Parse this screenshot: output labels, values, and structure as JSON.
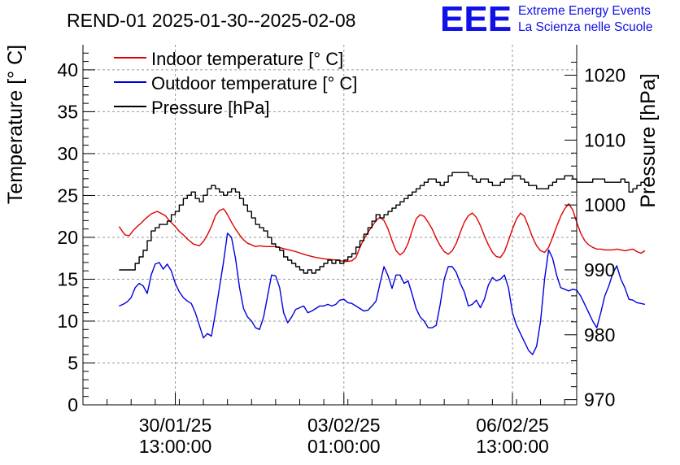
{
  "chart_data": {
    "type": "line",
    "title": "REND-01 2025-01-30--2025-02-08",
    "logo": {
      "text": "EEE",
      "line1": "Extreme Energy Events",
      "line2": "La Scienza nelle Scuole",
      "color": "#1010e8"
    },
    "ylabel": "Temperature [° C]",
    "y2label": "Pressure [hPa]",
    "ylim": [
      0,
      43
    ],
    "y2lim": [
      969.2,
      1024.7
    ],
    "yticks": [
      0,
      5,
      10,
      15,
      20,
      25,
      30,
      35,
      40
    ],
    "y2ticks": [
      970,
      980,
      990,
      1000,
      1010,
      1020
    ],
    "xlim_hours": [
      -46,
      200
    ],
    "xticks": [
      {
        "hour": 0,
        "line1": "30/01/25",
        "line2": "13:00:00"
      },
      {
        "hour": 84,
        "line1": "03/02/25",
        "line2": "01:00:00"
      },
      {
        "hour": 168,
        "line1": "06/02/25",
        "line2": "13:00:00"
      }
    ],
    "x_unit": "hours since 30/01/25 13:00:00",
    "grid": true,
    "legend_position": "top-left",
    "series": [
      {
        "name": "Indoor temperature [° C]",
        "axis": "left",
        "color": "#e00000",
        "x": [
          -28,
          -26,
          -25,
          -23,
          -21,
          -19,
          -17,
          -15,
          -12,
          -9,
          -5,
          -3,
          0,
          2,
          4,
          6,
          9,
          12,
          14,
          16,
          18,
          20,
          22,
          24,
          25,
          26,
          28,
          30,
          32,
          34,
          36,
          38,
          40,
          42,
          45,
          50,
          55,
          60,
          65,
          70,
          75,
          80,
          85,
          88,
          90,
          92,
          94,
          96,
          98,
          100,
          102,
          104,
          106,
          108,
          110,
          112,
          114,
          116,
          118,
          120,
          122,
          124,
          126,
          128,
          130,
          132,
          134,
          136,
          138,
          140,
          142,
          144,
          146,
          148,
          150,
          152,
          154,
          156,
          158,
          160,
          162,
          164,
          166,
          168,
          170,
          172,
          174,
          176,
          178,
          180,
          182,
          184,
          186,
          188,
          190,
          192,
          194,
          196,
          198,
          200,
          202,
          204,
          206,
          208,
          210,
          212,
          214,
          216,
          218,
          220,
          222,
          224,
          226,
          228,
          230,
          232,
          234
        ],
        "values": [
          21.3,
          20.6,
          20.3,
          20.2,
          20.8,
          21.3,
          21.7,
          22.2,
          22.8,
          23.1,
          22.6,
          22.0,
          21.3,
          20.7,
          20.3,
          19.8,
          19.2,
          19.0,
          19.5,
          20.3,
          21.3,
          22.6,
          23.2,
          23.4,
          23.1,
          22.7,
          21.8,
          21.0,
          20.3,
          19.7,
          19.3,
          19.1,
          18.9,
          19.0,
          18.9,
          18.9,
          18.6,
          18.3,
          17.9,
          17.6,
          17.4,
          17.3,
          17.1,
          17.2,
          17.6,
          18.8,
          19.8,
          20.6,
          21.3,
          22.0,
          22.4,
          22.0,
          21.0,
          19.6,
          18.4,
          17.9,
          18.3,
          19.3,
          20.8,
          22.2,
          22.7,
          22.5,
          21.8,
          21.0,
          19.9,
          19.0,
          18.3,
          18.0,
          18.4,
          19.3,
          20.6,
          21.8,
          22.6,
          22.9,
          22.4,
          21.4,
          20.2,
          19.1,
          18.2,
          17.7,
          17.6,
          18.3,
          19.6,
          21.0,
          22.2,
          22.9,
          22.5,
          21.3,
          20.0,
          19.0,
          18.4,
          18.2,
          18.8,
          20.0,
          21.3,
          22.5,
          23.4,
          24.0,
          23.3,
          21.8,
          20.5,
          19.6,
          19.1,
          18.8,
          18.6,
          18.6,
          18.5,
          18.5,
          18.5,
          18.6,
          18.5,
          18.4,
          18.5,
          18.6,
          18.3,
          18.1,
          18.4
        ]
      },
      {
        "name": "Outdoor temperature [° C]",
        "axis": "left",
        "color": "#0000e0",
        "x": [
          -28,
          -26,
          -24,
          -22,
          -20,
          -18,
          -16,
          -14,
          -12,
          -10,
          -8,
          -6,
          -4,
          -2,
          0,
          2,
          4,
          6,
          8,
          10,
          12,
          14,
          16,
          18,
          20,
          22,
          24,
          26,
          28,
          30,
          32,
          34,
          36,
          38,
          40,
          42,
          44,
          46,
          48,
          50,
          52,
          54,
          56,
          58,
          60,
          62,
          64,
          66,
          68,
          70,
          72,
          74,
          76,
          78,
          80,
          82,
          84,
          86,
          88,
          90,
          92,
          94,
          96,
          98,
          100,
          102,
          104,
          106,
          108,
          110,
          112,
          114,
          116,
          118,
          120,
          122,
          124,
          126,
          128,
          130,
          132,
          134,
          136,
          138,
          140,
          142,
          144,
          146,
          148,
          150,
          152,
          154,
          156,
          158,
          160,
          162,
          164,
          166,
          168,
          170,
          172,
          174,
          176,
          178,
          180,
          182,
          184,
          186,
          188,
          190,
          192,
          194,
          196,
          198,
          200,
          202,
          204,
          206,
          208,
          210,
          212,
          214,
          216,
          218,
          220,
          222,
          224,
          226,
          228,
          230,
          232,
          234
        ],
        "values": [
          11.8,
          12.0,
          12.3,
          12.8,
          14.0,
          14.5,
          14.2,
          13.3,
          15.5,
          16.8,
          17.0,
          16.2,
          16.8,
          16.0,
          14.5,
          13.5,
          12.8,
          12.4,
          12.1,
          11.0,
          9.5,
          8.0,
          8.5,
          8.2,
          11.0,
          14.0,
          17.0,
          20.5,
          20.0,
          17.5,
          14.0,
          11.5,
          10.5,
          10.0,
          9.2,
          9.0,
          10.5,
          13.0,
          15.5,
          15.4,
          14.0,
          11.0,
          9.8,
          10.5,
          11.4,
          11.6,
          11.8,
          11.0,
          11.2,
          11.5,
          11.8,
          11.8,
          12.0,
          11.8,
          12.0,
          12.5,
          12.6,
          12.2,
          12.1,
          11.8,
          11.5,
          11.2,
          11.3,
          11.8,
          12.4,
          14.5,
          16.5,
          15.4,
          13.9,
          15.5,
          15.5,
          14.5,
          14.8,
          13.2,
          11.5,
          10.5,
          10.0,
          9.2,
          9.2,
          9.5,
          12.0,
          15.0,
          16.5,
          16.5,
          15.8,
          14.5,
          13.5,
          11.8,
          12.0,
          12.5,
          11.6,
          12.6,
          14.3,
          15.2,
          14.8,
          15.0,
          15.5,
          14.0,
          11.0,
          9.5,
          8.5,
          7.5,
          6.5,
          6.0,
          7.0,
          10.0,
          15.0,
          18.5,
          17.5,
          15.5,
          14.0,
          13.8,
          13.6,
          13.8,
          13.7,
          13.0,
          12.0,
          11.0,
          10.0,
          9.2,
          11.0,
          13.0,
          14.2,
          15.7,
          16.6,
          15.0,
          14.0,
          12.6,
          12.5,
          12.2,
          12.1,
          12.0
        ]
      },
      {
        "name": "Pressure [hPa]",
        "axis": "right",
        "color": "#000000",
        "x": [
          -28,
          -22,
          -20,
          -18,
          -16,
          -14,
          -12,
          -10,
          -8,
          -6,
          -4,
          -2,
          0,
          2,
          4,
          6,
          8,
          10,
          12,
          14,
          16,
          18,
          20,
          22,
          24,
          26,
          28,
          30,
          32,
          34,
          36,
          38,
          40,
          42,
          44,
          46,
          48,
          50,
          52,
          54,
          56,
          58,
          60,
          62,
          64,
          66,
          68,
          70,
          72,
          74,
          76,
          78,
          80,
          82,
          84,
          86,
          88,
          90,
          92,
          94,
          96,
          98,
          100,
          102,
          104,
          106,
          108,
          110,
          112,
          114,
          116,
          118,
          120,
          122,
          124,
          126,
          128,
          130,
          132,
          134,
          136,
          138,
          140,
          142,
          144,
          146,
          148,
          150,
          152,
          154,
          156,
          158,
          160,
          162,
          164,
          166,
          168,
          170,
          172,
          174,
          176,
          178,
          180,
          182,
          184,
          186,
          188,
          190,
          192,
          194,
          196,
          198,
          200,
          202,
          204,
          206,
          208,
          210,
          212,
          214,
          216,
          218,
          220,
          222,
          224,
          226,
          228,
          230,
          232,
          234
        ],
        "values": [
          990.0,
          990.0,
          991.0,
          992.0,
          993.0,
          994.5,
          996.0,
          996.5,
          997.0,
          997.0,
          997.5,
          998.5,
          999.0,
          1000.0,
          1001.0,
          1001.5,
          1002.0,
          1001.0,
          1000.5,
          1001.5,
          1002.5,
          1003.0,
          1002.5,
          1002.0,
          1001.5,
          1002.0,
          1002.5,
          1002.0,
          1001.0,
          1000.0,
          999.0,
          998.0,
          997.0,
          996.5,
          996.0,
          995.0,
          994.0,
          993.5,
          993.0,
          992.0,
          991.5,
          991.0,
          990.5,
          990.0,
          989.5,
          990.0,
          989.5,
          990.0,
          990.5,
          991.0,
          991.5,
          991.0,
          991.5,
          991.0,
          991.5,
          992.0,
          992.5,
          993.5,
          994.5,
          995.5,
          996.5,
          997.5,
          998.5,
          998.0,
          998.5,
          999.0,
          999.5,
          1000.0,
          1000.5,
          1001.0,
          1001.5,
          1002.0,
          1002.5,
          1003.0,
          1003.5,
          1004.0,
          1004.0,
          1003.5,
          1003.0,
          1003.5,
          1004.5,
          1005.0,
          1005.0,
          1005.0,
          1005.0,
          1004.5,
          1004.0,
          1003.5,
          1004.0,
          1004.0,
          1003.5,
          1003.0,
          1003.0,
          1003.5,
          1004.0,
          1004.0,
          1004.5,
          1004.5,
          1004.0,
          1003.5,
          1003.0,
          1003.0,
          1002.5,
          1002.5,
          1002.5,
          1003.0,
          1003.5,
          1004.0,
          1004.0,
          1004.5,
          1004.5,
          1004.0,
          1003.5,
          1003.5,
          1003.5,
          1003.5,
          1004.0,
          1004.0,
          1004.0,
          1003.5,
          1003.5,
          1003.5,
          1003.5,
          1004.0,
          1003.5,
          1002.0,
          1002.5,
          1003.0,
          1003.5,
          1003.5
        ]
      }
    ]
  }
}
